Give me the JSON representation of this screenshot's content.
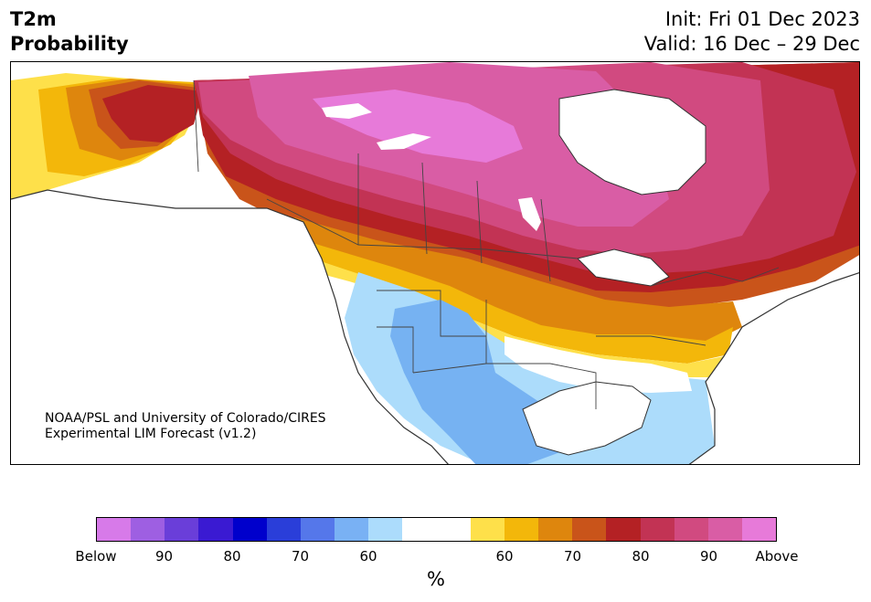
{
  "title": {
    "line1": "T2m",
    "line2": "Probability"
  },
  "dates": {
    "init": "Init: Fri 01 Dec 2023",
    "valid": "Valid: 16 Dec – 29 Dec"
  },
  "credit": {
    "line1": "NOAA/PSL and University of Colorado/CIRES",
    "line2": "Experimental LIM Forecast (v1.2)"
  },
  "map": {
    "region": "North America",
    "colors": {
      "below_light": "#acdcfb",
      "below_mid": "#76b2f2",
      "above_yellow": "#fee04a",
      "above_gold": "#f3b70a",
      "above_orange": "#de860d",
      "above_rust": "#c9541a",
      "above_red": "#b42124",
      "above_crimson": "#c23354",
      "above_rose": "#d14a80",
      "above_pink": "#d95da5",
      "above_magenta": "#e77ad9",
      "land_lines": "#333333",
      "water": "#ffffff"
    }
  },
  "colorbar": {
    "unit": "%",
    "colors": [
      "#d77ae9",
      "#9e5fe2",
      "#6a3ed9",
      "#3a1ad2",
      "#0000cc",
      "#2a3ed9",
      "#5577ea",
      "#79b1f4",
      "#acdcfc",
      "#ffffff",
      "#ffffff",
      "#fee04a",
      "#f3b70a",
      "#de860d",
      "#c9541a",
      "#b42124",
      "#c23354",
      "#d14a80",
      "#d95da5",
      "#e77ad9"
    ],
    "labels": [
      "Below",
      "90",
      "80",
      "70",
      "60",
      "60",
      "70",
      "80",
      "90",
      "Above"
    ]
  }
}
